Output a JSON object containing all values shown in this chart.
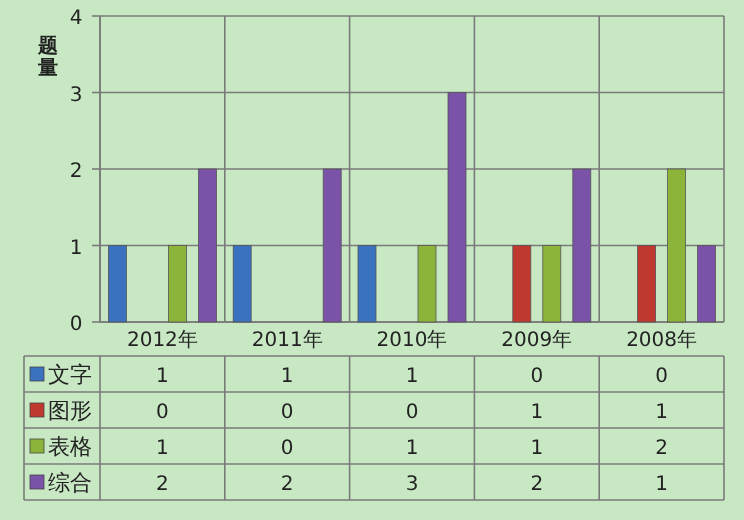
{
  "chart_data": {
    "type": "bar",
    "ylabel": "题量",
    "categories": [
      "2012年",
      "2011年",
      "2010年",
      "2009年",
      "2008年"
    ],
    "series": [
      {
        "name": "文字",
        "color": "#3a72c0",
        "values": [
          1,
          1,
          1,
          0,
          0
        ]
      },
      {
        "name": "图形",
        "color": "#c0392f",
        "values": [
          0,
          0,
          0,
          1,
          1
        ]
      },
      {
        "name": "表格",
        "color": "#8cb43a",
        "values": [
          1,
          0,
          1,
          1,
          2
        ]
      },
      {
        "name": "综合",
        "color": "#7a52a8",
        "values": [
          2,
          2,
          3,
          2,
          1
        ]
      }
    ],
    "ylim": [
      0,
      4
    ],
    "yticks": [
      0,
      1,
      2,
      3,
      4
    ],
    "grid": "y",
    "legend": "bottom",
    "data_labels": true
  }
}
